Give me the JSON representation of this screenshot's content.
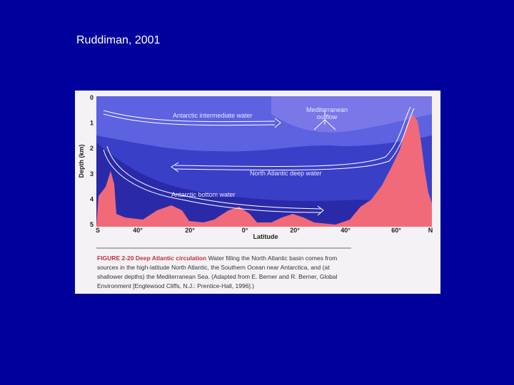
{
  "slide": {
    "title": "Ruddiman, 2001"
  },
  "figure": {
    "y_axis_label": "Depth (km)",
    "depth_ticks": [
      "0",
      "1",
      "2",
      "3",
      "4",
      "5"
    ],
    "latitude_ticks": [
      "S",
      "40°",
      "20°",
      "0°",
      "20°",
      "40°",
      "60°",
      "N"
    ],
    "x_axis_label": "Latitude",
    "water_masses": {
      "intermediate": "Antarctic intermediate water",
      "mediterranean": [
        "Mediterranean",
        "outflow"
      ],
      "north_atlantic": "North Atlantic deep water",
      "bottom": "Antarctic bottom water"
    },
    "caption": {
      "number": "FIGURE 2-20",
      "heading": "Deep Atlantic circulation",
      "lines": [
        "Water filling the North Atlantic basin comes from",
        "sources in the high-latitude North Atlantic, the Southern Ocean near Antarctica, and (at",
        "shallower depths) the Mediterranean Sea. (Adapted from E. Berner and R. Berner, Global",
        "Environment [Englewood Cliffs, N.J.: Prentice-Hall, 1996].)"
      ]
    }
  }
}
